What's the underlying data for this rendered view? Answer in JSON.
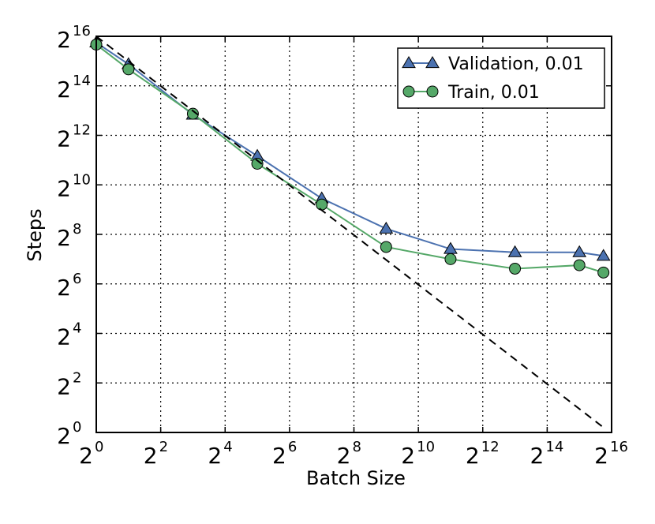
{
  "chart_data": {
    "type": "line",
    "title": "",
    "xlabel": "Batch Size",
    "ylabel": "Steps",
    "x_scale": "log2",
    "y_scale": "log2",
    "xlim": [
      1,
      65536
    ],
    "ylim": [
      1,
      65536
    ],
    "grid": true,
    "legend_position": "top-right",
    "x_ticks": [
      {
        "base": "2",
        "exp": "0"
      },
      {
        "base": "2",
        "exp": "2"
      },
      {
        "base": "2",
        "exp": "4"
      },
      {
        "base": "2",
        "exp": "6"
      },
      {
        "base": "2",
        "exp": "8"
      },
      {
        "base": "2",
        "exp": "10"
      },
      {
        "base": "2",
        "exp": "12"
      },
      {
        "base": "2",
        "exp": "14"
      },
      {
        "base": "2",
        "exp": "16"
      }
    ],
    "y_ticks": [
      {
        "base": "2",
        "exp": "0"
      },
      {
        "base": "2",
        "exp": "2"
      },
      {
        "base": "2",
        "exp": "4"
      },
      {
        "base": "2",
        "exp": "6"
      },
      {
        "base": "2",
        "exp": "8"
      },
      {
        "base": "2",
        "exp": "10"
      },
      {
        "base": "2",
        "exp": "12"
      },
      {
        "base": "2",
        "exp": "14"
      },
      {
        "base": "2",
        "exp": "16"
      }
    ],
    "series": [
      {
        "name": "Validation, 0.01",
        "color": "#4c72b0",
        "marker": "triangle",
        "x": [
          1,
          2,
          8,
          32,
          128,
          512,
          2048,
          8192,
          32768,
          55000
        ],
        "y": [
          55000,
          30000,
          7300,
          2300,
          700,
          300,
          170,
          155,
          155,
          140
        ]
      },
      {
        "name": "Train, 0.01",
        "color": "#55a868",
        "marker": "circle",
        "x": [
          1,
          2,
          8,
          32,
          128,
          512,
          2048,
          8192,
          32768,
          55000
        ],
        "y": [
          52000,
          26000,
          7500,
          1850,
          590,
          180,
          128,
          98,
          108,
          88
        ]
      },
      {
        "color": "#000000",
        "style": "dashed",
        "x": [
          1,
          55000
        ],
        "y": [
          65536,
          1.15
        ]
      }
    ]
  }
}
